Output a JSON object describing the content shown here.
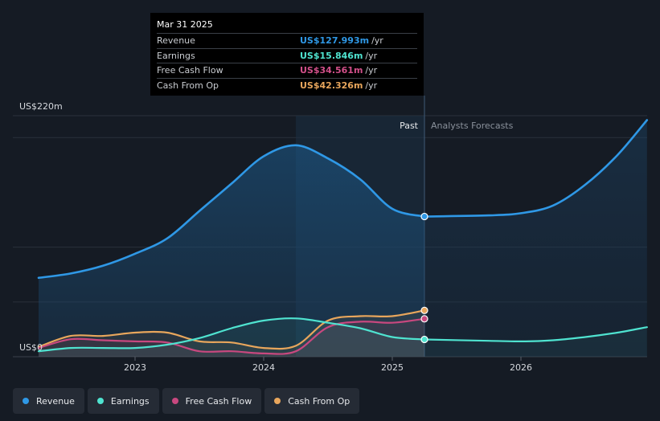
{
  "chart_data": {
    "type": "area",
    "title": "",
    "y_axis": {
      "min": 0,
      "max": 220,
      "top_label": "US$220m",
      "bottom_label": "US$0",
      "unit": "US$ millions"
    },
    "x_axis": {
      "ticks": [
        2023,
        2024,
        2025,
        2026
      ],
      "range": [
        2022.25,
        2026.98
      ]
    },
    "past_end": 2025.25,
    "highlight_start": 2024.25,
    "region_labels": {
      "past": "Past",
      "forecast": "Analysts Forecasts"
    },
    "series": [
      {
        "name": "Revenue",
        "color": "#2f98e6",
        "points": [
          [
            2022.25,
            72
          ],
          [
            2022.5,
            76
          ],
          [
            2022.75,
            83
          ],
          [
            2023.0,
            94
          ],
          [
            2023.25,
            108
          ],
          [
            2023.5,
            133
          ],
          [
            2023.75,
            158
          ],
          [
            2024.0,
            183
          ],
          [
            2024.25,
            193
          ],
          [
            2024.5,
            181
          ],
          [
            2024.75,
            162
          ],
          [
            2025.0,
            135
          ],
          [
            2025.25,
            128
          ]
        ],
        "forecast": [
          [
            2025.25,
            128
          ],
          [
            2025.75,
            129
          ],
          [
            2026.0,
            131
          ],
          [
            2026.25,
            138
          ],
          [
            2026.5,
            157
          ],
          [
            2026.75,
            184
          ],
          [
            2026.98,
            216
          ]
        ]
      },
      {
        "name": "Earnings",
        "color": "#4fe3d0",
        "points": [
          [
            2022.25,
            5
          ],
          [
            2022.5,
            8
          ],
          [
            2022.75,
            8
          ],
          [
            2023.0,
            8
          ],
          [
            2023.25,
            11
          ],
          [
            2023.5,
            17
          ],
          [
            2023.75,
            26
          ],
          [
            2024.0,
            33
          ],
          [
            2024.25,
            35
          ],
          [
            2024.5,
            31
          ],
          [
            2024.75,
            26
          ],
          [
            2025.0,
            18
          ],
          [
            2025.25,
            15.8
          ]
        ],
        "forecast": [
          [
            2025.25,
            15.8
          ],
          [
            2025.75,
            14.5
          ],
          [
            2026.0,
            14
          ],
          [
            2026.25,
            15
          ],
          [
            2026.5,
            18
          ],
          [
            2026.75,
            22
          ],
          [
            2026.98,
            27
          ]
        ]
      },
      {
        "name": "Free Cash Flow",
        "color": "#c8487f",
        "points": [
          [
            2022.25,
            8
          ],
          [
            2022.5,
            16
          ],
          [
            2022.75,
            15
          ],
          [
            2023.0,
            14
          ],
          [
            2023.25,
            13
          ],
          [
            2023.5,
            5
          ],
          [
            2023.75,
            5
          ],
          [
            2024.0,
            3
          ],
          [
            2024.25,
            5
          ],
          [
            2024.5,
            27
          ],
          [
            2024.75,
            32
          ],
          [
            2025.0,
            31
          ],
          [
            2025.25,
            34.6
          ]
        ],
        "forecast": []
      },
      {
        "name": "Cash From Op",
        "color": "#e8a65c",
        "points": [
          [
            2022.25,
            9
          ],
          [
            2022.5,
            19
          ],
          [
            2022.75,
            19
          ],
          [
            2023.0,
            22
          ],
          [
            2023.25,
            22
          ],
          [
            2023.5,
            14
          ],
          [
            2023.75,
            13
          ],
          [
            2024.0,
            8
          ],
          [
            2024.25,
            10
          ],
          [
            2024.5,
            33
          ],
          [
            2024.75,
            37
          ],
          [
            2025.0,
            37
          ],
          [
            2025.25,
            42.3
          ]
        ],
        "forecast": []
      }
    ]
  },
  "tooltip": {
    "date": "Mar 31 2025",
    "unit": "/yr",
    "rows": [
      {
        "label": "Revenue",
        "value": "US$127.993m",
        "color": "#2f98e6"
      },
      {
        "label": "Earnings",
        "value": "US$15.846m",
        "color": "#4fe3d0"
      },
      {
        "label": "Free Cash Flow",
        "value": "US$34.561m",
        "color": "#d2508a"
      },
      {
        "label": "Cash From Op",
        "value": "US$42.326m",
        "color": "#e8a65c"
      }
    ]
  },
  "legend": [
    {
      "label": "Revenue",
      "color": "#2f98e6"
    },
    {
      "label": "Earnings",
      "color": "#4fe3d0"
    },
    {
      "label": "Free Cash Flow",
      "color": "#c8487f"
    },
    {
      "label": "Cash From Op",
      "color": "#e8a65c"
    }
  ]
}
